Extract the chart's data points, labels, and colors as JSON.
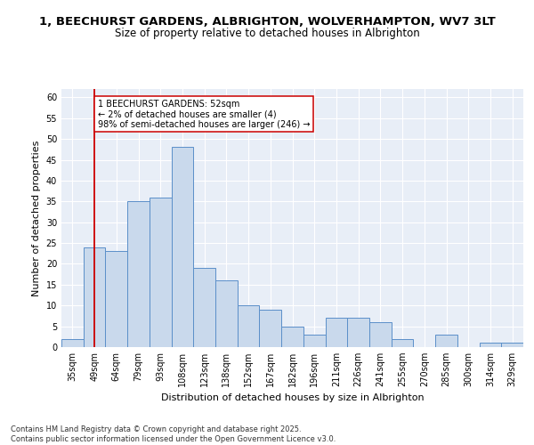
{
  "title_line1": "1, BEECHURST GARDENS, ALBRIGHTON, WOLVERHAMPTON, WV7 3LT",
  "title_line2": "Size of property relative to detached houses in Albrighton",
  "xlabel": "Distribution of detached houses by size in Albrighton",
  "ylabel": "Number of detached properties",
  "categories": [
    "35sqm",
    "49sqm",
    "64sqm",
    "79sqm",
    "93sqm",
    "108sqm",
    "123sqm",
    "138sqm",
    "152sqm",
    "167sqm",
    "182sqm",
    "196sqm",
    "211sqm",
    "226sqm",
    "241sqm",
    "255sqm",
    "270sqm",
    "285sqm",
    "300sqm",
    "314sqm",
    "329sqm"
  ],
  "values": [
    2,
    24,
    23,
    35,
    36,
    48,
    19,
    16,
    10,
    9,
    5,
    3,
    7,
    7,
    6,
    2,
    0,
    3,
    0,
    1,
    1
  ],
  "bar_color": "#c9d9ec",
  "bar_edge_color": "#5b8fc9",
  "vline_x_index": 1,
  "vline_color": "#cc0000",
  "annotation_text": "1 BEECHURST GARDENS: 52sqm\n← 2% of detached houses are smaller (4)\n98% of semi-detached houses are larger (246) →",
  "annotation_box_color": "#ffffff",
  "annotation_box_edge_color": "#cc0000",
  "ylim": [
    0,
    62
  ],
  "yticks": [
    0,
    5,
    10,
    15,
    20,
    25,
    30,
    35,
    40,
    45,
    50,
    55,
    60
  ],
  "background_color": "#e8eef7",
  "grid_color": "#ffffff",
  "footer_text": "Contains HM Land Registry data © Crown copyright and database right 2025.\nContains public sector information licensed under the Open Government Licence v3.0.",
  "title_fontsize": 9.5,
  "subtitle_fontsize": 8.5,
  "axis_label_fontsize": 8,
  "tick_fontsize": 7,
  "annotation_fontsize": 7,
  "footer_fontsize": 6
}
